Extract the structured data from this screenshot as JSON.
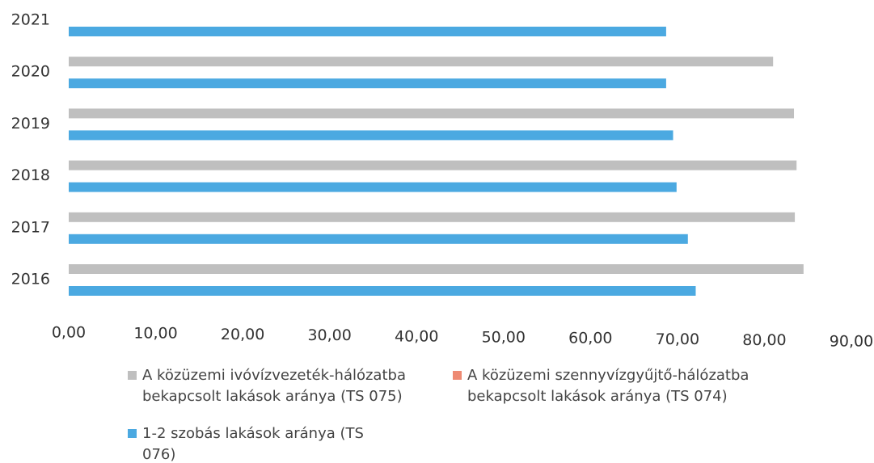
{
  "chart_data": {
    "type": "hbar",
    "categories": [
      "2016",
      "2017",
      "2018",
      "2019",
      "2020",
      "2021"
    ],
    "series": [
      {
        "name": "A közüzemi ivóvízvezeték-hálózatba bekapcsolt lakások aránya (TS 075)",
        "color": "#bfbfbf",
        "values": [
          84.5,
          83.5,
          83.7,
          83.4,
          81.0,
          null
        ]
      },
      {
        "name": "A közüzemi szennyvízgyűjtő-hálózatba bekapcsolt lakások aránya (TS 074)",
        "color": "#ee8a73",
        "values": [
          null,
          null,
          null,
          null,
          null,
          null
        ]
      },
      {
        "name": "1-2 szobás lakások aránya (TS 076)",
        "color": "#4ba9e1",
        "values": [
          72.1,
          71.2,
          69.9,
          69.5,
          68.7,
          68.7
        ]
      }
    ],
    "xlim": [
      0,
      90
    ],
    "xticks": [
      {
        "value": 0,
        "label": "0,00"
      },
      {
        "value": 10,
        "label": "10,00"
      },
      {
        "value": 20,
        "label": "20,00"
      },
      {
        "value": 30,
        "label": "30,00"
      },
      {
        "value": 40,
        "label": "40,00"
      },
      {
        "value": 50,
        "label": "50,00"
      },
      {
        "value": 60,
        "label": "60,00"
      },
      {
        "value": 70,
        "label": "70,00"
      },
      {
        "value": 80,
        "label": "80,00"
      },
      {
        "value": 90,
        "label": "90,00"
      }
    ],
    "grid": false
  }
}
